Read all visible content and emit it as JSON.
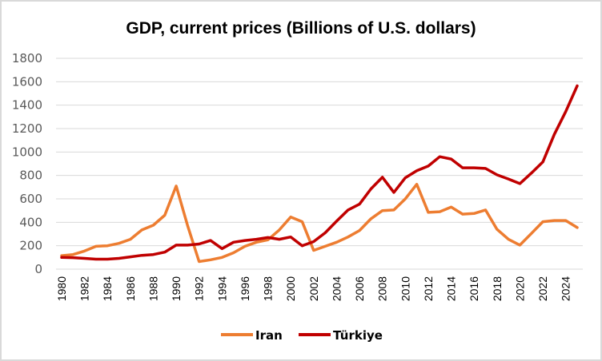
{
  "chart_data": {
    "type": "line",
    "title": "GDP, current prices (Billions of U.S. dollars)",
    "xlabel": "",
    "ylabel": "",
    "ylim": [
      0,
      1800
    ],
    "yticks": [
      0,
      200,
      400,
      600,
      800,
      1000,
      1200,
      1400,
      1600,
      1800
    ],
    "grid": true,
    "legend_position": "bottom",
    "x": [
      1980,
      1981,
      1982,
      1983,
      1984,
      1985,
      1986,
      1987,
      1988,
      1989,
      1990,
      1991,
      1992,
      1993,
      1994,
      1995,
      1996,
      1997,
      1998,
      1999,
      2000,
      2001,
      2002,
      2003,
      2004,
      2005,
      2006,
      2007,
      2008,
      2009,
      2010,
      2011,
      2012,
      2013,
      2014,
      2015,
      2016,
      2017,
      2018,
      2019,
      2020,
      2021,
      2022,
      2023,
      2024,
      2025
    ],
    "xtick_labels": [
      "1980",
      "1982",
      "1984",
      "1986",
      "1988",
      "1990",
      "1992",
      "1994",
      "1996",
      "1998",
      "2000",
      "2002",
      "2004",
      "2006",
      "2008",
      "2010",
      "2012",
      "2014",
      "2016",
      "2018",
      "2020",
      "2022",
      "2024"
    ],
    "series": [
      {
        "name": "Iran",
        "color": "#ed7d31",
        "values": [
          115,
          125,
          155,
          195,
          200,
          220,
          255,
          335,
          375,
          460,
          710,
          370,
          65,
          80,
          100,
          140,
          195,
          230,
          250,
          335,
          445,
          405,
          160,
          195,
          230,
          275,
          330,
          430,
          500,
          505,
          600,
          725,
          485,
          490,
          530,
          470,
          475,
          505,
          340,
          255,
          205,
          305,
          405,
          415,
          415,
          355
        ]
      },
      {
        "name": "Türkiye",
        "color": "#c00000",
        "values": [
          100,
          98,
          92,
          85,
          85,
          92,
          105,
          118,
          125,
          145,
          205,
          205,
          215,
          245,
          175,
          230,
          245,
          255,
          270,
          255,
          275,
          200,
          235,
          310,
          410,
          505,
          555,
          685,
          785,
          655,
          780,
          840,
          880,
          960,
          940,
          865,
          865,
          860,
          805,
          770,
          730,
          820,
          915,
          1150,
          1345,
          1565
        ]
      }
    ]
  }
}
